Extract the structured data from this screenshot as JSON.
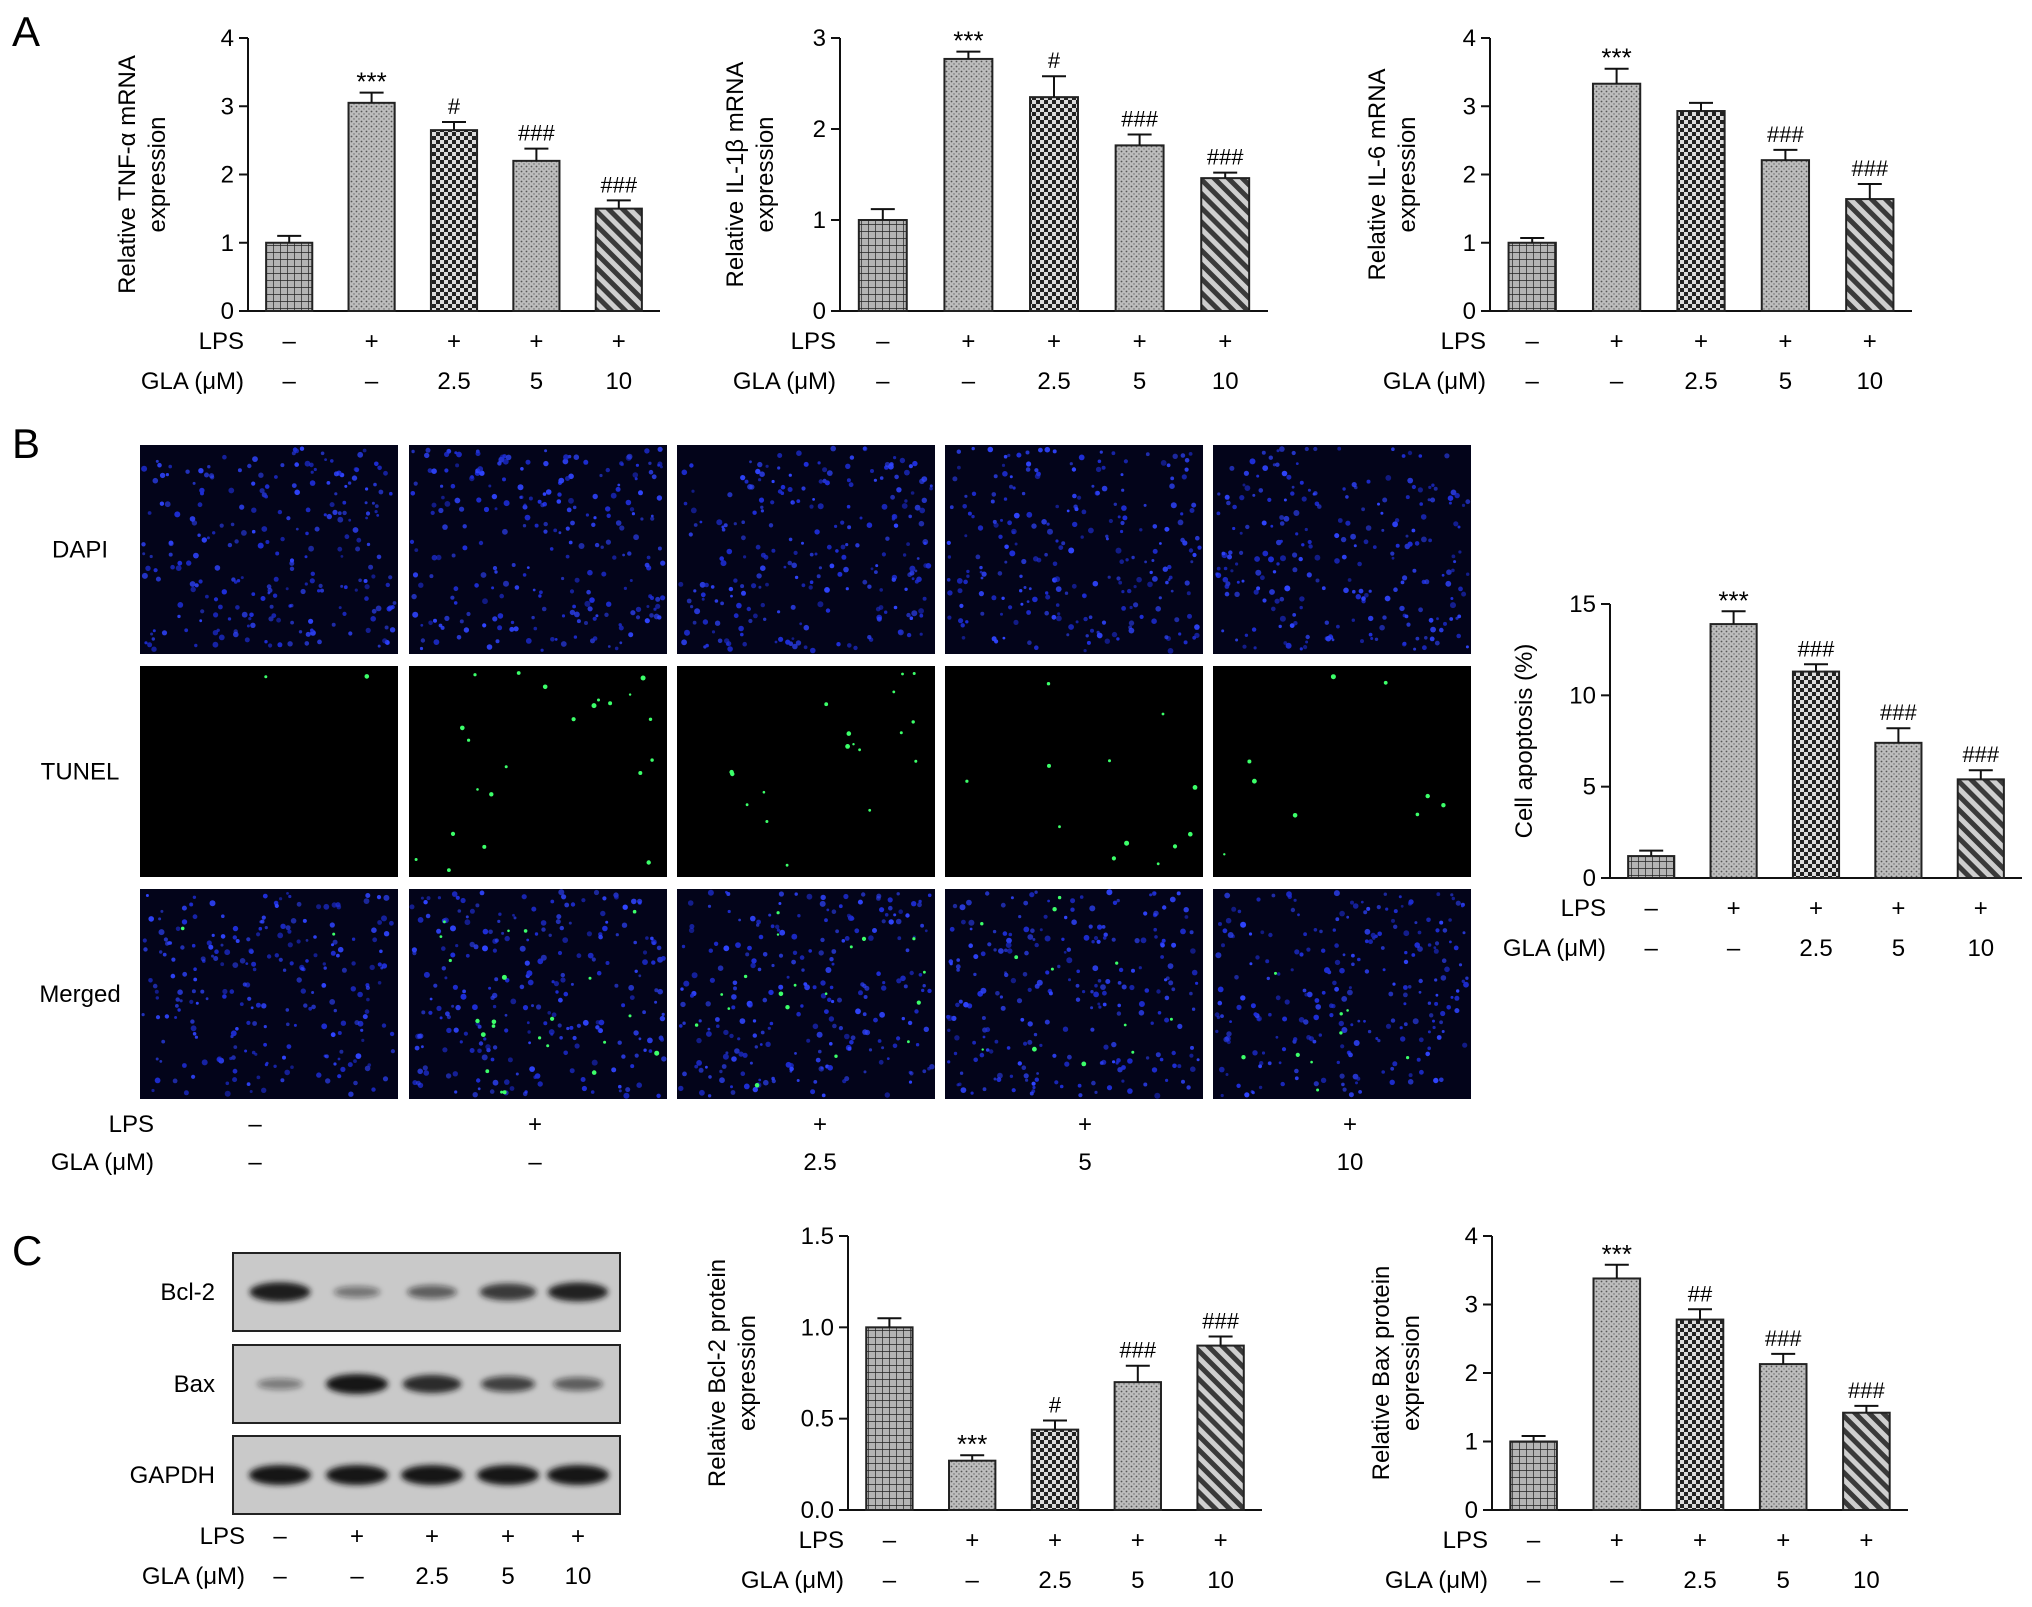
{
  "panel_labels": [
    "A",
    "B",
    "C"
  ],
  "conditions": {
    "lps_label": "LPS",
    "gla_label": "GLA (μM)",
    "lps": [
      "–",
      "+",
      "+",
      "+",
      "+"
    ],
    "gla": [
      "–",
      "–",
      "2.5",
      "5",
      "10"
    ]
  },
  "microscopy": {
    "row_labels": [
      "DAPI",
      "TUNEL",
      "Merged"
    ],
    "columns": 5
  },
  "western_blot": {
    "bands": [
      "Bcl-2",
      "Bax",
      "GAPDH"
    ],
    "relative_intensity": {
      "Bcl-2": [
        0.95,
        0.3,
        0.45,
        0.75,
        0.92
      ],
      "Bax": [
        0.25,
        1.0,
        0.85,
        0.65,
        0.45
      ],
      "GAPDH": [
        1.0,
        1.0,
        1.0,
        1.0,
        1.0
      ]
    }
  },
  "colors": {
    "bar_fill": "#a8a8a8",
    "bar_stroke": "#333333",
    "dapi": "#1e2ed8",
    "tunel": "#3cff6a",
    "blot_bg": "#c9c9c9",
    "band": "#151515"
  },
  "chart_data": [
    {
      "id": "tnf",
      "type": "bar",
      "ylabel": [
        "Relative TNF-α mRNA",
        "expression"
      ],
      "ylim": [
        0,
        4
      ],
      "yticks": [
        0,
        1,
        2,
        3,
        4
      ],
      "values": [
        1.0,
        3.05,
        2.65,
        2.2,
        1.5
      ],
      "errors": [
        0.1,
        0.15,
        0.12,
        0.18,
        0.12
      ],
      "annotations": [
        "",
        "***",
        "#",
        "###",
        "###"
      ],
      "patterns": [
        "grid",
        "dots",
        "check",
        "dots",
        "diag"
      ]
    },
    {
      "id": "il1b",
      "type": "bar",
      "ylabel": [
        "Relative IL-1β mRNA",
        "expression"
      ],
      "ylim": [
        0,
        3
      ],
      "yticks": [
        0,
        1,
        2,
        3
      ],
      "values": [
        1.0,
        2.77,
        2.35,
        1.82,
        1.46
      ],
      "errors": [
        0.12,
        0.08,
        0.23,
        0.12,
        0.06
      ],
      "annotations": [
        "",
        "***",
        "#",
        "###",
        "###"
      ],
      "patterns": [
        "grid",
        "dots",
        "check",
        "dots",
        "diag"
      ]
    },
    {
      "id": "il6",
      "type": "bar",
      "ylabel": [
        "Relative IL-6 mRNA",
        "expression"
      ],
      "ylim": [
        0,
        4
      ],
      "yticks": [
        0,
        1,
        2,
        3,
        4
      ],
      "values": [
        1.0,
        3.33,
        2.93,
        2.21,
        1.64
      ],
      "errors": [
        0.07,
        0.22,
        0.12,
        0.15,
        0.22
      ],
      "annotations": [
        "",
        "***",
        "",
        "###",
        "###"
      ],
      "patterns": [
        "grid",
        "dots",
        "check",
        "dots",
        "diag"
      ]
    },
    {
      "id": "apoptosis",
      "type": "bar",
      "ylabel": [
        "Cell apoptosis (%)"
      ],
      "ylim": [
        0,
        15
      ],
      "yticks": [
        0,
        5,
        10,
        15
      ],
      "values": [
        1.2,
        13.9,
        11.3,
        7.4,
        5.4
      ],
      "errors": [
        0.3,
        0.7,
        0.4,
        0.8,
        0.5
      ],
      "annotations": [
        "",
        "***",
        "###",
        "###",
        "###"
      ],
      "patterns": [
        "grid",
        "dots",
        "check",
        "dots",
        "diag"
      ]
    },
    {
      "id": "bcl2",
      "type": "bar",
      "ylabel": [
        "Relative Bcl-2 protein",
        "expression"
      ],
      "ylim": [
        0,
        1.5
      ],
      "yticks": [
        "0.0",
        "0.5",
        "1.0",
        "1.5"
      ],
      "values": [
        1.0,
        0.27,
        0.44,
        0.7,
        0.9
      ],
      "errors": [
        0.05,
        0.03,
        0.05,
        0.09,
        0.05
      ],
      "annotations": [
        "",
        "***",
        "#",
        "###",
        "###"
      ],
      "patterns": [
        "grid",
        "dots",
        "check",
        "dots",
        "diag"
      ]
    },
    {
      "id": "bax",
      "type": "bar",
      "ylabel": [
        "Relative Bax protein",
        "expression"
      ],
      "ylim": [
        0,
        4
      ],
      "yticks": [
        0,
        1,
        2,
        3,
        4
      ],
      "values": [
        1.0,
        3.38,
        2.78,
        2.13,
        1.42
      ],
      "errors": [
        0.08,
        0.2,
        0.15,
        0.15,
        0.1
      ],
      "annotations": [
        "",
        "***",
        "##",
        "###",
        "###"
      ],
      "patterns": [
        "grid",
        "dots",
        "check",
        "dots",
        "diag"
      ]
    }
  ]
}
